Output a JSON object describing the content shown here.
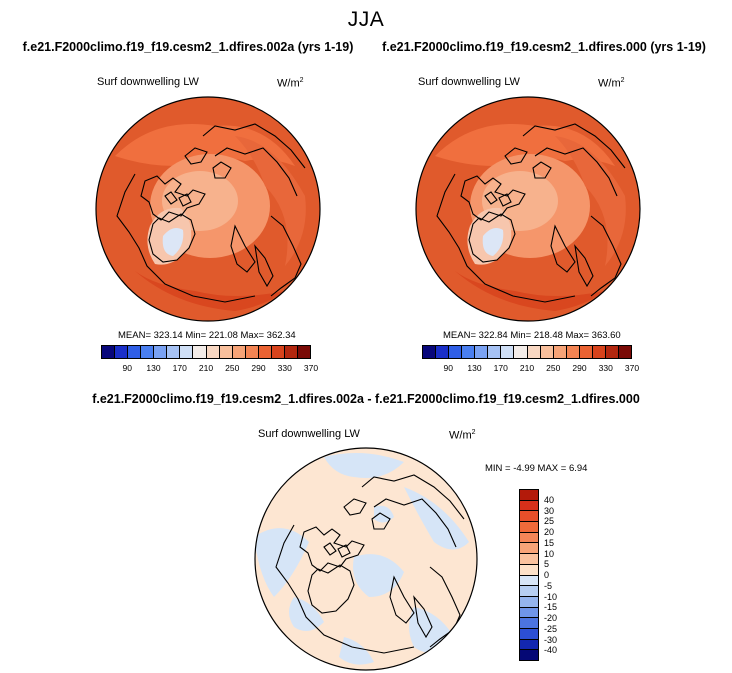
{
  "title": "JJA",
  "panels": [
    {
      "case": "f.e21.F2000climo.f19_f19.cesm2_1.dfires.002a (yrs 1-19)",
      "variable": "Surf downwelling LW",
      "units": "W/m",
      "units_sup": "2",
      "stats": "MEAN= 323.14  Min= 221.08  Max= 362.34"
    },
    {
      "case": "f.e21.F2000climo.f19_f19.cesm2_1.dfires.000 (yrs 1-19)",
      "variable": "Surf downwelling LW",
      "units": "W/m",
      "units_sup": "2",
      "stats": "MEAN= 322.84  Min= 218.48  Max= 363.60"
    }
  ],
  "abs_colorbar": {
    "ticks": [
      "90",
      "130",
      "170",
      "210",
      "250",
      "290",
      "330",
      "370"
    ],
    "colors": [
      "#08077b",
      "#1a2fc9",
      "#2f5ee6",
      "#4a7ff0",
      "#7aa2f3",
      "#a6c2f4",
      "#cfdff6",
      "#f3ece8",
      "#f8d7c2",
      "#f8bf9c",
      "#f6a377",
      "#f38453",
      "#ea6232",
      "#d8431c",
      "#b3270f",
      "#7a0a06"
    ]
  },
  "diff": {
    "title": "f.e21.F2000climo.f19_f19.cesm2_1.dfires.002a - f.e21.F2000climo.f19_f19.cesm2_1.dfires.000",
    "variable": "Surf downwelling LW",
    "units": "W/m",
    "units_sup": "2",
    "stats": "MIN = -4.99 MAX =  6.94",
    "ticks": [
      "40",
      "30",
      "25",
      "20",
      "15",
      "10",
      "5",
      "0",
      "-5",
      "-10",
      "-15",
      "-20",
      "-25",
      "-30",
      "-40"
    ],
    "colors": [
      "#b31a0a",
      "#d7301a",
      "#e84f2a",
      "#f06a3a",
      "#f58658",
      "#f8a478",
      "#fac29e",
      "#fde1c8",
      "#d8e6f7",
      "#b7cff2",
      "#95b5ee",
      "#6f95e9",
      "#4c74e0",
      "#2c4fd4",
      "#1327b0",
      "#050875"
    ]
  }
}
